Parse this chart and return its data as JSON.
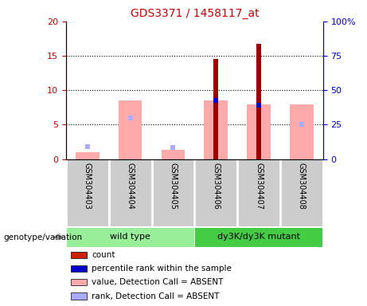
{
  "title": "GDS3371 / 1458117_at",
  "samples": [
    "GSM304403",
    "GSM304404",
    "GSM304405",
    "GSM304406",
    "GSM304407",
    "GSM304408"
  ],
  "groups": [
    {
      "name": "wild type",
      "indices": [
        0,
        1,
        2
      ],
      "color": "#99ee99"
    },
    {
      "name": "dy3K/dy3K mutant",
      "indices": [
        3,
        4,
        5
      ],
      "color": "#44cc44"
    }
  ],
  "pink_bars": [
    1.0,
    8.5,
    1.3,
    8.5,
    8.0,
    8.0
  ],
  "dark_red_bars": [
    0.0,
    0.0,
    0.0,
    14.5,
    16.8,
    0.0
  ],
  "blue_squares_value": [
    null,
    null,
    null,
    8.5,
    7.8,
    null
  ],
  "blue_squares_rank": [
    1.8,
    6.0,
    1.7,
    null,
    null,
    5.0
  ],
  "left_ylim": [
    0,
    20
  ],
  "right_ylim": [
    0,
    100
  ],
  "left_yticks": [
    0,
    5,
    10,
    15,
    20
  ],
  "right_yticks": [
    0,
    25,
    50,
    75,
    100
  ],
  "right_yticklabels": [
    "0",
    "25",
    "50",
    "75",
    "100%"
  ],
  "grid_values": [
    5,
    10,
    15
  ],
  "title_color": "#cc0000",
  "left_axis_color": "#cc0000",
  "right_axis_color": "#0000cc",
  "pink_color": "#ffaaaa",
  "dark_red_color": "#990000",
  "blue_color": "#0000cc",
  "light_blue_color": "#aaaaff",
  "sample_bg": "#cccccc",
  "legend_items": [
    {
      "color": "#cc2200",
      "label": "count"
    },
    {
      "color": "#0000cc",
      "label": "percentile rank within the sample"
    },
    {
      "color": "#ffaaaa",
      "label": "value, Detection Call = ABSENT"
    },
    {
      "color": "#aaaaff",
      "label": "rank, Detection Call = ABSENT"
    }
  ]
}
